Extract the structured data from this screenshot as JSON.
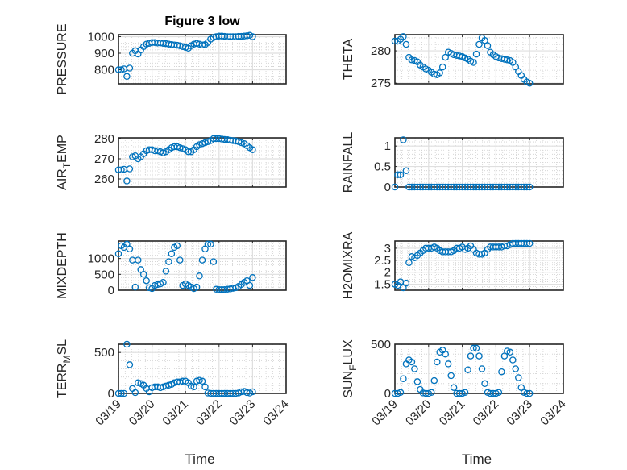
{
  "title": "Figure 3 low",
  "colors": {
    "marker": "#0072BD",
    "axis": "#262626",
    "grid": "#dfdfdf"
  },
  "x_ticks": [
    "03/19",
    "03/20",
    "03/21",
    "03/22",
    "03/23",
    "03/24"
  ],
  "x_label": "Time",
  "chart_data": [
    {
      "type": "scatter",
      "name": "PRESSURE",
      "ylabel_parts": [
        "PRESSURE"
      ],
      "ylim": [
        715,
        1012
      ],
      "yticks": [
        800,
        900,
        1000
      ],
      "xlim_days": [
        0,
        5
      ],
      "x_hours_step": 2,
      "values": [
        800,
        800,
        805,
        760,
        810,
        900,
        915,
        895,
        920,
        940,
        955,
        960,
        965,
        965,
        962,
        962,
        960,
        958,
        955,
        952,
        950,
        948,
        945,
        940,
        935,
        930,
        945,
        955,
        960,
        955,
        950,
        952,
        965,
        985,
        995,
        1000,
        1003,
        1003,
        1002,
        1000,
        1000,
        1000,
        1000,
        1002,
        1002,
        1003,
        1005,
        1008,
        1000
      ]
    },
    {
      "type": "scatter",
      "name": "THETA",
      "ylabel_parts": [
        "THETA"
      ],
      "ylim": [
        274.9,
        282.5
      ],
      "yticks": [
        275,
        280
      ],
      "xlim_days": [
        0,
        5
      ],
      "x_hours_step": 2,
      "values": [
        281.5,
        281.5,
        281.8,
        282.2,
        281,
        279,
        278.6,
        278.5,
        278.3,
        277.8,
        277.5,
        277.2,
        277,
        276.7,
        276.4,
        276.3,
        276.6,
        277.5,
        279,
        279.8,
        279.6,
        279.4,
        279.3,
        279.2,
        279.1,
        278.9,
        278.7,
        278.4,
        278.2,
        279.5,
        281,
        282,
        281.6,
        280.8,
        279.8,
        279.4,
        279.1,
        278.9,
        278.8,
        278.7,
        278.6,
        278.5,
        278.2,
        277.5,
        276.8,
        276.2,
        275.6,
        275.2,
        275
      ]
    },
    {
      "type": "scatter",
      "name": "AIR_TEMP",
      "ylabel_parts": [
        "AIR",
        "T",
        "EMP"
      ],
      "ylim": [
        256,
        280.4
      ],
      "yticks": [
        260,
        270,
        280
      ],
      "xlim_days": [
        0,
        5
      ],
      "x_hours_step": 2,
      "values": [
        264.5,
        264.5,
        264.8,
        259,
        265,
        271,
        271.5,
        270,
        271,
        272.5,
        274,
        274.5,
        274.5,
        274,
        274,
        273.5,
        273,
        273.5,
        274.5,
        275.5,
        276,
        276,
        275.5,
        275,
        274.5,
        273.5,
        273.5,
        274.5,
        276,
        277,
        277.5,
        278,
        278.5,
        279,
        280,
        280,
        280,
        279.8,
        279.6,
        279.5,
        279.2,
        279,
        278.8,
        278.5,
        278,
        277.5,
        276.5,
        275.5,
        274.5
      ]
    },
    {
      "type": "scatter",
      "name": "RAINFALL",
      "ylabel_parts": [
        "RAINFALL"
      ],
      "ylim": [
        0,
        1.2
      ],
      "yticks": [
        0,
        0.5,
        1
      ],
      "xlim_days": [
        0,
        5
      ],
      "x_hours_step": 2,
      "values": [
        0,
        0.3,
        0.3,
        1.15,
        0.4,
        0,
        0,
        0,
        0,
        0,
        0,
        0,
        0,
        0,
        0,
        0,
        0,
        0,
        0,
        0,
        0,
        0,
        0,
        0,
        0,
        0,
        0,
        0,
        0,
        0,
        0,
        0,
        0,
        0,
        0,
        0,
        0,
        0,
        0,
        0,
        0,
        0,
        0,
        0,
        0,
        0,
        0,
        0,
        0
      ]
    },
    {
      "type": "scatter",
      "name": "MIXDEPTH",
      "ylabel_parts": [
        "MIXDEPTH"
      ],
      "ylim": [
        0,
        1550
      ],
      "yticks": [
        0,
        500,
        1000
      ],
      "xlim_days": [
        0,
        5
      ],
      "x_hours_step": 2,
      "values": [
        1150,
        1400,
        1350,
        1450,
        1300,
        950,
        100,
        950,
        650,
        500,
        300,
        80,
        50,
        150,
        180,
        200,
        250,
        600,
        900,
        1150,
        1350,
        1400,
        950,
        150,
        200,
        150,
        100,
        50,
        100,
        450,
        950,
        1300,
        1450,
        1450,
        900,
        30,
        20,
        20,
        20,
        30,
        40,
        60,
        80,
        120,
        180,
        250,
        300,
        150,
        400
      ]
    },
    {
      "type": "scatter",
      "name": "H2OMIXRA",
      "ylabel_parts": [
        "H2OMIXRA"
      ],
      "ylim": [
        1.25,
        3.3
      ],
      "yticks": [
        1.5,
        2,
        2.5,
        3
      ],
      "xlim_days": [
        0,
        5
      ],
      "x_hours_step": 2,
      "values": [
        1.5,
        1.45,
        1.6,
        1.35,
        1.55,
        2.4,
        2.65,
        2.6,
        2.7,
        2.8,
        2.9,
        3.0,
        3.0,
        3.0,
        3.05,
        3.0,
        2.9,
        2.85,
        2.85,
        2.85,
        2.85,
        2.9,
        3.0,
        3.0,
        3.05,
        2.95,
        3.0,
        3.1,
        2.95,
        2.8,
        2.75,
        2.75,
        2.8,
        2.95,
        3.05,
        3.05,
        3.05,
        3.05,
        3.05,
        3.1,
        3.1,
        3.15,
        3.2,
        3.2,
        3.2,
        3.2,
        3.2,
        3.2,
        3.2
      ]
    },
    {
      "type": "scatter",
      "name": "TERR_MSL",
      "ylabel_parts": [
        "TERR",
        "M",
        "SL"
      ],
      "ylim": [
        0,
        600
      ],
      "yticks": [
        0,
        500
      ],
      "xlim_days": [
        0,
        5
      ],
      "x_hours_step": 2,
      "values": [
        0,
        0,
        0,
        600,
        350,
        60,
        10,
        130,
        120,
        100,
        60,
        20,
        70,
        80,
        80,
        70,
        80,
        90,
        100,
        110,
        130,
        140,
        140,
        150,
        150,
        130,
        90,
        80,
        150,
        160,
        150,
        80,
        5,
        0,
        0,
        0,
        0,
        0,
        0,
        0,
        0,
        0,
        0,
        5,
        20,
        25,
        10,
        5,
        20
      ]
    },
    {
      "type": "scatter",
      "name": "SUN_FLUX",
      "ylabel_parts": [
        "SUN",
        "F",
        "LUX"
      ],
      "ylim": [
        0,
        500
      ],
      "yticks": [
        0,
        500
      ],
      "xlim_days": [
        0,
        5
      ],
      "x_hours_step": 2,
      "values": [
        0,
        0,
        10,
        150,
        300,
        340,
        320,
        250,
        120,
        40,
        5,
        0,
        0,
        10,
        130,
        320,
        420,
        440,
        400,
        300,
        180,
        60,
        0,
        0,
        0,
        10,
        240,
        380,
        460,
        460,
        380,
        250,
        100,
        10,
        0,
        0,
        0,
        10,
        220,
        380,
        430,
        420,
        340,
        250,
        160,
        60,
        10,
        0,
        0
      ]
    }
  ]
}
